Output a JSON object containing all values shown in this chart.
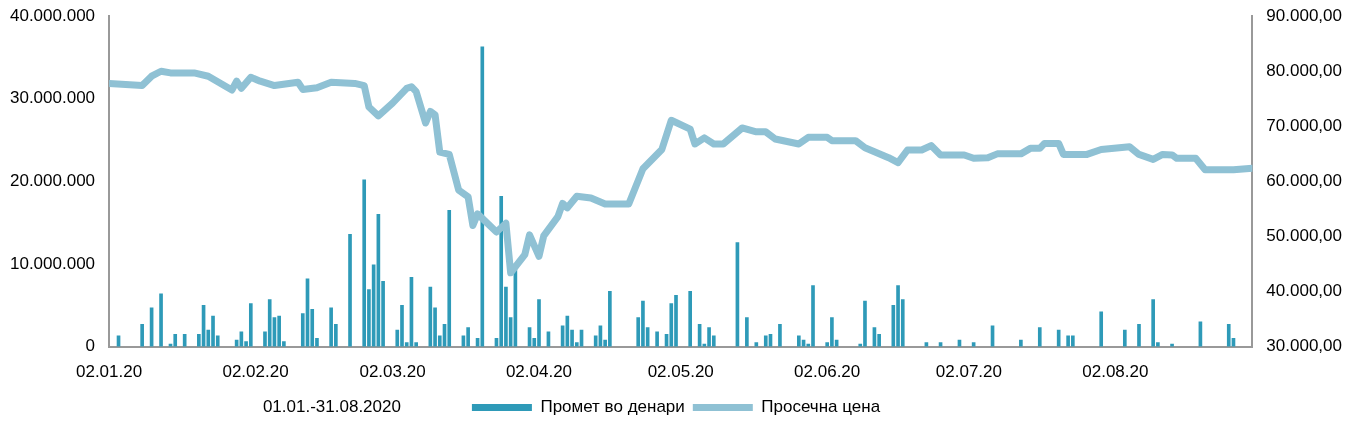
{
  "chart_data": {
    "type": "bar",
    "xlabel": "01.01.-31.08.2020",
    "legend": "bottom",
    "grid": false,
    "xlim": [
      "2020-01-02",
      "2020-08-31"
    ],
    "xticks": [
      {
        "value": "2020-01-02",
        "label": "02.01.20"
      },
      {
        "value": "2020-02-02",
        "label": "02.02.20"
      },
      {
        "value": "2020-03-02",
        "label": "02.03.20"
      },
      {
        "value": "2020-04-02",
        "label": "02.04.20"
      },
      {
        "value": "2020-05-02",
        "label": "02.05.20"
      },
      {
        "value": "2020-06-02",
        "label": "02.06.20"
      },
      {
        "value": "2020-07-02",
        "label": "02.07.20"
      },
      {
        "value": "2020-08-02",
        "label": "02.08.20"
      }
    ],
    "ylim": [
      0,
      40000000
    ],
    "yticks": [
      {
        "value": 0,
        "label": "0"
      },
      {
        "value": 10000000,
        "label": "10.000.000"
      },
      {
        "value": 20000000,
        "label": "20.000.000"
      },
      {
        "value": 30000000,
        "label": "30.000.000"
      },
      {
        "value": 40000000,
        "label": "40.000.000"
      }
    ],
    "y2lim": [
      30000,
      90000
    ],
    "y2ticks": [
      {
        "value": 30000,
        "label": "30.000,00"
      },
      {
        "value": 40000,
        "label": "40.000,00"
      },
      {
        "value": 50000,
        "label": "50.000,00"
      },
      {
        "value": 60000,
        "label": "60.000,00"
      },
      {
        "value": 70000,
        "label": "70.000,00"
      },
      {
        "value": 80000,
        "label": "80.000,00"
      },
      {
        "value": 90000,
        "label": "90.000,00"
      }
    ],
    "series": [
      {
        "name": "Промет во денари",
        "color": "#2e9ab8",
        "x": [
          "2020-01-04",
          "2020-01-09",
          "2020-01-11",
          "2020-01-13",
          "2020-01-15",
          "2020-01-16",
          "2020-01-18",
          "2020-01-21",
          "2020-01-22",
          "2020-01-23",
          "2020-01-24",
          "2020-01-25",
          "2020-01-29",
          "2020-01-30",
          "2020-01-31",
          "2020-02-01",
          "2020-02-04",
          "2020-02-05",
          "2020-02-06",
          "2020-02-07",
          "2020-02-08",
          "2020-02-12",
          "2020-02-13",
          "2020-02-14",
          "2020-02-15",
          "2020-02-18",
          "2020-02-19",
          "2020-02-22",
          "2020-02-25",
          "2020-02-26",
          "2020-02-27",
          "2020-02-28",
          "2020-02-29",
          "2020-03-03",
          "2020-03-04",
          "2020-03-05",
          "2020-03-06",
          "2020-03-07",
          "2020-03-10",
          "2020-03-11",
          "2020-03-12",
          "2020-03-13",
          "2020-03-14",
          "2020-03-17",
          "2020-03-18",
          "2020-03-20",
          "2020-03-21",
          "2020-03-24",
          "2020-03-25",
          "2020-03-26",
          "2020-03-27",
          "2020-03-28",
          "2020-03-31",
          "2020-04-01",
          "2020-04-02",
          "2020-04-04",
          "2020-04-07",
          "2020-04-08",
          "2020-04-09",
          "2020-04-10",
          "2020-04-11",
          "2020-04-14",
          "2020-04-15",
          "2020-04-16",
          "2020-04-17",
          "2020-04-23",
          "2020-04-24",
          "2020-04-25",
          "2020-04-27",
          "2020-04-29",
          "2020-04-30",
          "2020-05-01",
          "2020-05-04",
          "2020-05-06",
          "2020-05-07",
          "2020-05-08",
          "2020-05-09",
          "2020-05-14",
          "2020-05-16",
          "2020-05-18",
          "2020-05-20",
          "2020-05-21",
          "2020-05-23",
          "2020-05-27",
          "2020-05-28",
          "2020-05-29",
          "2020-05-30",
          "2020-06-02",
          "2020-06-03",
          "2020-06-04",
          "2020-06-09",
          "2020-06-10",
          "2020-06-12",
          "2020-06-13",
          "2020-06-16",
          "2020-06-17",
          "2020-06-18",
          "2020-06-23",
          "2020-06-26",
          "2020-06-30",
          "2020-07-03",
          "2020-07-07",
          "2020-07-13",
          "2020-07-17",
          "2020-07-21",
          "2020-07-23",
          "2020-07-24",
          "2020-07-30",
          "2020-08-04",
          "2020-08-07",
          "2020-08-10",
          "2020-08-11",
          "2020-08-14",
          "2020-08-20",
          "2020-08-26",
          "2020-08-27"
        ],
        "values": [
          1300000,
          2700000,
          4700000,
          6400000,
          300000,
          1500000,
          1500000,
          1500000,
          5000000,
          2000000,
          3700000,
          1300000,
          800000,
          1800000,
          600000,
          5200000,
          1800000,
          5700000,
          3500000,
          3700000,
          600000,
          4000000,
          8200000,
          4500000,
          1000000,
          4700000,
          2700000,
          13600000,
          20200000,
          6900000,
          9900000,
          16000000,
          7900000,
          2000000,
          5000000,
          500000,
          8400000,
          500000,
          7200000,
          4700000,
          1300000,
          2700000,
          16500000,
          1300000,
          2300000,
          1000000,
          36300000,
          1000000,
          18200000,
          7200000,
          3500000,
          9300000,
          2300000,
          1000000,
          5700000,
          1800000,
          2500000,
          3700000,
          2000000,
          500000,
          2000000,
          1300000,
          2500000,
          800000,
          6700000,
          3500000,
          5500000,
          2300000,
          1800000,
          1500000,
          5200000,
          6200000,
          6700000,
          2700000,
          300000,
          2300000,
          1300000,
          12600000,
          3500000,
          500000,
          1300000,
          1500000,
          2700000,
          1300000,
          800000,
          300000,
          7400000,
          500000,
          3500000,
          800000,
          300000,
          5500000,
          2300000,
          1500000,
          5000000,
          7400000,
          5700000,
          500000,
          500000,
          800000,
          500000,
          2500000,
          800000,
          2300000,
          2000000,
          1300000,
          1300000,
          4200000,
          2000000,
          2700000,
          5700000,
          500000,
          300000,
          3000000,
          2700000,
          1000000
        ]
      },
      {
        "name": "Просечна цена",
        "type": "line",
        "axis": "y2",
        "color": "#8fc1d4",
        "x": [
          "2020-01-02",
          "2020-01-09",
          "2020-01-11",
          "2020-01-13",
          "2020-01-15",
          "2020-01-20",
          "2020-01-23",
          "2020-01-28",
          "2020-01-29",
          "2020-01-30",
          "2020-02-01",
          "2020-02-03",
          "2020-02-06",
          "2020-02-11",
          "2020-02-12",
          "2020-02-15",
          "2020-02-18",
          "2020-02-23",
          "2020-02-25",
          "2020-02-26",
          "2020-02-28",
          "2020-03-02",
          "2020-03-05",
          "2020-03-06",
          "2020-03-07",
          "2020-03-09",
          "2020-03-10",
          "2020-03-11",
          "2020-03-12",
          "2020-03-14",
          "2020-03-16",
          "2020-03-18",
          "2020-03-19",
          "2020-03-20",
          "2020-03-24",
          "2020-03-26",
          "2020-03-27",
          "2020-03-30",
          "2020-03-31",
          "2020-04-02",
          "2020-04-03",
          "2020-04-06",
          "2020-04-07",
          "2020-04-08",
          "2020-04-10",
          "2020-04-13",
          "2020-04-16",
          "2020-04-21",
          "2020-04-24",
          "2020-04-28",
          "2020-04-30",
          "2020-05-04",
          "2020-05-05",
          "2020-05-07",
          "2020-05-09",
          "2020-05-11",
          "2020-05-15",
          "2020-05-18",
          "2020-05-20",
          "2020-05-22",
          "2020-05-27",
          "2020-05-29",
          "2020-06-02",
          "2020-06-03",
          "2020-06-08",
          "2020-06-10",
          "2020-06-15",
          "2020-06-17",
          "2020-06-19",
          "2020-06-22",
          "2020-06-24",
          "2020-06-26",
          "2020-07-01",
          "2020-07-03",
          "2020-07-06",
          "2020-07-08",
          "2020-07-13",
          "2020-07-15",
          "2020-07-17",
          "2020-07-18",
          "2020-07-21",
          "2020-07-22",
          "2020-07-27",
          "2020-07-30",
          "2020-08-05",
          "2020-08-07",
          "2020-08-10",
          "2020-08-12",
          "2020-08-14",
          "2020-08-15",
          "2020-08-19",
          "2020-08-21",
          "2020-08-27",
          "2020-08-31"
        ],
        "values": [
          77800,
          77400,
          79100,
          80000,
          79700,
          79700,
          79100,
          76600,
          78200,
          76900,
          78900,
          78200,
          77400,
          78000,
          76700,
          77000,
          78000,
          77800,
          77400,
          73500,
          71900,
          74200,
          76900,
          77200,
          76300,
          70600,
          72700,
          72100,
          65300,
          64900,
          58400,
          57200,
          52000,
          54100,
          50800,
          52400,
          43400,
          46700,
          50300,
          46400,
          50100,
          53600,
          56000,
          55200,
          57300,
          57000,
          55900,
          55900,
          62300,
          65800,
          71100,
          69500,
          66800,
          67900,
          66800,
          66800,
          69700,
          69000,
          69000,
          67700,
          66800,
          68000,
          68000,
          67400,
          67400,
          66100,
          64300,
          63400,
          65700,
          65700,
          66500,
          64800,
          64800,
          64200,
          64300,
          65000,
          65000,
          66000,
          66000,
          66900,
          66900,
          64900,
          64900,
          65800,
          66300,
          64900,
          64000,
          64900,
          64800,
          64200,
          64200,
          62100,
          62100,
          62400
        ]
      }
    ]
  }
}
